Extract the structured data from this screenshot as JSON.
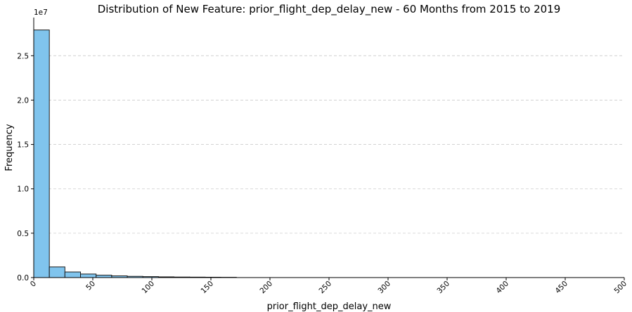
{
  "chart_data": {
    "type": "bar",
    "title": "Distribution of New Feature: prior_flight_dep_delay_new - 60 Months from 2015 to 2019",
    "xlabel": "prior_flight_dep_delay_new",
    "ylabel": "Frequency",
    "y_offset_label": "1e7",
    "xlim": [
      0,
      500
    ],
    "ylim": [
      0,
      2.93
    ],
    "x_ticks": [
      0,
      50,
      100,
      150,
      200,
      250,
      300,
      350,
      400,
      450,
      500
    ],
    "x_tick_labels": [
      "0",
      "50",
      "100",
      "150",
      "200",
      "250",
      "300",
      "350",
      "400",
      "450",
      "500"
    ],
    "y_ticks": [
      0,
      0.5,
      1.0,
      1.5,
      2.0,
      2.5
    ],
    "y_tick_labels": [
      "0.0",
      "0.5",
      "1.0",
      "1.5",
      "2.0",
      "2.5"
    ],
    "grid": "y-dashed",
    "bar_color": "#80c4ed",
    "bin_width": 13.2,
    "bin_starts": [
      0,
      13.2,
      26.4,
      39.6,
      52.8,
      66.0,
      79.2,
      92.4,
      105.6,
      118.8,
      132.0,
      145.2,
      158.4
    ],
    "values": [
      2.79,
      0.12,
      0.063,
      0.04,
      0.027,
      0.019,
      0.014,
      0.011,
      0.008,
      0.006,
      0.005,
      0.004,
      0.003
    ]
  }
}
